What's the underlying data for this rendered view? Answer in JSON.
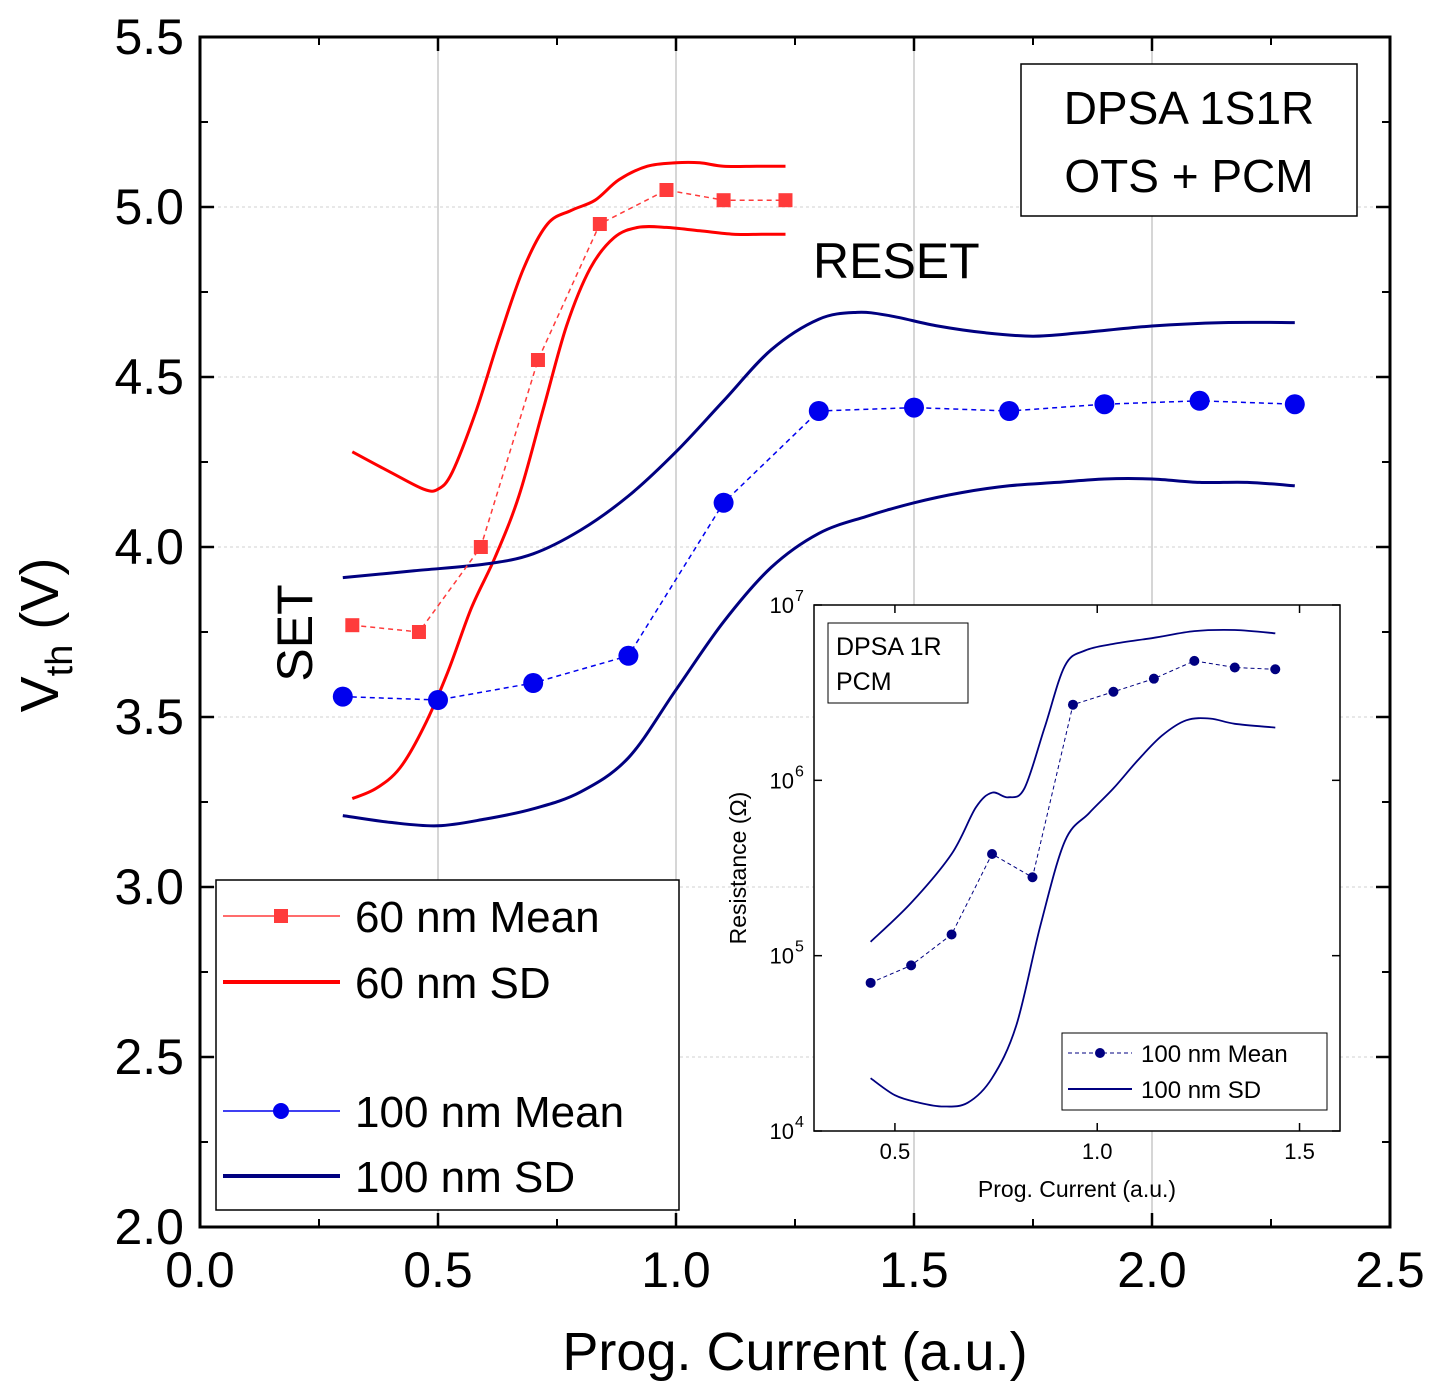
{
  "chart_data": [
    {
      "type": "line",
      "xlabel": "Prog. Current (a.u.)",
      "ylabel_main": "V",
      "ylabel_sub": "th",
      "ylabel_unit": " (V)",
      "xlim": [
        0.0,
        2.5
      ],
      "ylim": [
        2.0,
        5.5
      ],
      "xticks": [
        "0.0",
        "0.5",
        "1.0",
        "1.5",
        "2.0",
        "2.5"
      ],
      "yticks": [
        "2.0",
        "2.5",
        "3.0",
        "3.5",
        "4.0",
        "4.5",
        "5.0",
        "5.5"
      ],
      "grid": true,
      "legend_position": "bottom-left",
      "info_box": [
        "DPSA 1S1R",
        "OTS + PCM"
      ],
      "annotations": {
        "set": "SET",
        "reset": "RESET"
      },
      "series": [
        {
          "name": "60 nm Mean",
          "style": "dashed-markers",
          "marker": "square",
          "color": "#FF3B3B",
          "x": [
            0.32,
            0.46,
            0.59,
            0.71,
            0.84,
            0.98,
            1.1,
            1.23
          ],
          "y": [
            3.77,
            3.75,
            4.0,
            4.55,
            4.95,
            5.05,
            5.02,
            5.02
          ]
        },
        {
          "name": "60 nm SD",
          "style": "solid",
          "color": "#FF0000",
          "upper": {
            "x": [
              0.32,
              0.4,
              0.47,
              0.5,
              0.53,
              0.58,
              0.63,
              0.68,
              0.73,
              0.78,
              0.83,
              0.88,
              0.94,
              1.0,
              1.05,
              1.1,
              1.17,
              1.23
            ],
            "y": [
              4.28,
              4.22,
              4.17,
              4.17,
              4.22,
              4.4,
              4.62,
              4.82,
              4.95,
              4.99,
              5.02,
              5.08,
              5.12,
              5.13,
              5.13,
              5.12,
              5.12,
              5.12
            ]
          },
          "lower": {
            "x": [
              0.32,
              0.37,
              0.42,
              0.47,
              0.52,
              0.57,
              0.62,
              0.67,
              0.72,
              0.77,
              0.82,
              0.87,
              0.92,
              0.98,
              1.05,
              1.12,
              1.18,
              1.23
            ],
            "y": [
              3.26,
              3.29,
              3.35,
              3.47,
              3.63,
              3.82,
              3.97,
              4.15,
              4.4,
              4.65,
              4.82,
              4.91,
              4.94,
              4.94,
              4.93,
              4.92,
              4.92,
              4.92
            ]
          }
        },
        {
          "name": "100 nm Mean",
          "style": "dashed-markers",
          "marker": "circle",
          "color": "#0000EE",
          "x": [
            0.3,
            0.5,
            0.7,
            0.9,
            1.1,
            1.3,
            1.5,
            1.7,
            1.9,
            2.1,
            2.3
          ],
          "y": [
            3.56,
            3.55,
            3.6,
            3.68,
            4.13,
            4.4,
            4.41,
            4.4,
            4.42,
            4.43,
            4.42
          ]
        },
        {
          "name": "100 nm SD",
          "style": "solid",
          "color": "#000080",
          "upper": {
            "x": [
              0.3,
              0.45,
              0.6,
              0.7,
              0.8,
              0.9,
              1.0,
              1.1,
              1.2,
              1.3,
              1.38,
              1.45,
              1.55,
              1.65,
              1.75,
              1.85,
              2.0,
              2.15,
              2.3
            ],
            "y": [
              3.91,
              3.93,
              3.95,
              3.98,
              4.05,
              4.15,
              4.28,
              4.43,
              4.58,
              4.67,
              4.69,
              4.68,
              4.65,
              4.63,
              4.62,
              4.63,
              4.65,
              4.66,
              4.66
            ]
          },
          "lower": {
            "x": [
              0.3,
              0.4,
              0.5,
              0.6,
              0.7,
              0.8,
              0.9,
              1.0,
              1.1,
              1.2,
              1.3,
              1.4,
              1.5,
              1.6,
              1.7,
              1.8,
              1.9,
              2.0,
              2.1,
              2.2,
              2.3
            ],
            "y": [
              3.21,
              3.19,
              3.18,
              3.2,
              3.23,
              3.28,
              3.38,
              3.58,
              3.78,
              3.94,
              4.04,
              4.09,
              4.13,
              4.16,
              4.18,
              4.19,
              4.2,
              4.2,
              4.19,
              4.19,
              4.18
            ]
          }
        }
      ]
    },
    {
      "type": "line",
      "xlabel": "Prog. Current (a.u.)",
      "ylabel": "Resistance (Ω)",
      "xlim": [
        0.3,
        1.6
      ],
      "ylim_log10": [
        4,
        7
      ],
      "y_scale": "log",
      "xticks": [
        "0.5",
        "1.0",
        "1.5"
      ],
      "yticks_base": [
        "10",
        "10",
        "10",
        "10"
      ],
      "yticks_exp": [
        "4",
        "5",
        "6",
        "7"
      ],
      "legend_position": "bottom-right",
      "info_box": [
        "DPSA 1R",
        "PCM"
      ],
      "series": [
        {
          "name": "100 nm Mean",
          "style": "dashed-markers",
          "marker": "circle",
          "color": "#000080",
          "x": [
            0.44,
            0.54,
            0.64,
            0.74,
            0.84,
            0.94,
            1.04,
            1.14,
            1.24,
            1.34,
            1.44
          ],
          "y": [
            70000,
            88000,
            132000,
            380000,
            280000,
            2700000,
            3200000,
            3800000,
            4800000,
            4400000,
            4300000
          ]
        },
        {
          "name": "100 nm SD",
          "style": "solid",
          "color": "#000080",
          "upper": {
            "x": [
              0.44,
              0.54,
              0.64,
              0.7,
              0.74,
              0.78,
              0.82,
              0.87,
              0.92,
              0.97,
              1.04,
              1.14,
              1.24,
              1.34,
              1.44
            ],
            "y": [
              120000,
              200000,
              380000,
              700000,
              850000,
              800000,
              900000,
              2000000,
              4500000,
              5500000,
              6000000,
              6500000,
              7100000,
              7200000,
              6900000
            ]
          },
          "lower": {
            "x": [
              0.44,
              0.5,
              0.56,
              0.62,
              0.68,
              0.74,
              0.8,
              0.86,
              0.92,
              0.98,
              1.04,
              1.1,
              1.16,
              1.22,
              1.28,
              1.34,
              1.44
            ],
            "y": [
              20000,
              16000,
              14500,
              13800,
              14500,
              20000,
              40000,
              150000,
              450000,
              650000,
              900000,
              1300000,
              1800000,
              2200000,
              2250000,
              2100000,
              2000000
            ]
          }
        }
      ]
    }
  ]
}
